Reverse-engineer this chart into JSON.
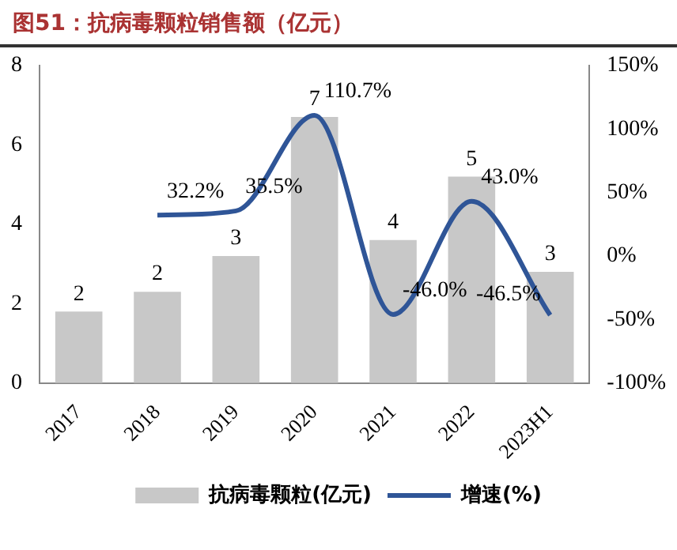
{
  "chart_data": {
    "type": "bar",
    "title": "图51：抗病毒颗粒销售额（亿元）",
    "categories": [
      "2017",
      "2018",
      "2019",
      "2020",
      "2021",
      "2022",
      "2023H1"
    ],
    "series": [
      {
        "name": "抗病毒颗粒(亿元)",
        "color": "#c8c8c8",
        "values": [
          1.8,
          2.3,
          3.2,
          6.7,
          3.6,
          5.2,
          2.8
        ],
        "value_labels": [
          "2",
          "2",
          "3",
          "7",
          "4",
          "5",
          "3"
        ]
      },
      {
        "name": "增速(%)",
        "type": "line",
        "axis": "y2",
        "color": "#2f5597",
        "values": [
          null,
          32.2,
          35.5,
          110.7,
          -46.0,
          43.0,
          -46.5
        ],
        "value_labels": [
          null,
          "32.2%",
          "35.5%",
          "110.7%",
          "-46.0%",
          "43.0%",
          "-46.5%"
        ]
      }
    ],
    "ylim": [
      0,
      8
    ],
    "yticks": [
      0,
      2,
      4,
      6,
      8
    ],
    "y2lim": [
      -100,
      150
    ],
    "y2ticks": [
      {
        "value": -100,
        "label": "-100%"
      },
      {
        "value": -50,
        "label": "-50%"
      },
      {
        "value": 0,
        "label": "0%"
      },
      {
        "value": 50,
        "label": "50%"
      },
      {
        "value": 100,
        "label": "100%"
      },
      {
        "value": 150,
        "label": "150%"
      }
    ],
    "legend": "bottom",
    "grid": false,
    "marker": "none",
    "line_style": "solid"
  }
}
